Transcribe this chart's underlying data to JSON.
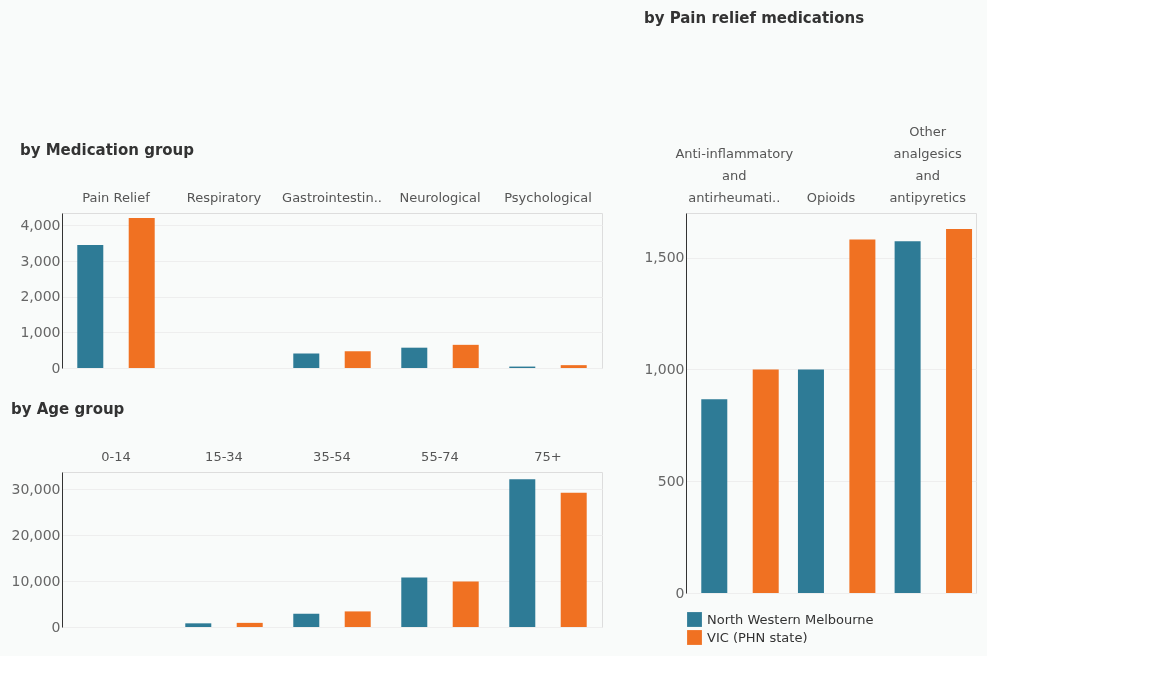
{
  "chart_data": [
    {
      "type": "bar",
      "title": "by Medication group",
      "categories": [
        "Pain Relief",
        "Respiratory",
        "Gastrointestin..",
        "Neurological",
        "Psychological"
      ],
      "series": [
        {
          "color": "#2e7b96",
          "values": [
            3450,
            null,
            410,
            570,
            40
          ]
        },
        {
          "color": "#f07122",
          "values": [
            4210,
            null,
            470,
            650,
            80
          ]
        }
      ],
      "ylim": [
        0,
        4350
      ],
      "yticks": [
        0,
        {
          "value": 1000,
          "label": "1,000"
        },
        {
          "value": 2000,
          "label": "2,000"
        },
        {
          "value": 3000,
          "label": "3,000"
        },
        {
          "value": 4000,
          "label": "4,000"
        }
      ],
      "grid": "y"
    },
    {
      "type": "bar",
      "title": "by Age group",
      "categories": [
        "0-14",
        "15-34",
        "35-54",
        "55-74",
        "75+"
      ],
      "series": [
        {
          "color": "#2e7b96",
          "values": [
            null,
            800,
            2900,
            10800,
            32200
          ]
        },
        {
          "color": "#f07122",
          "values": [
            null,
            900,
            3400,
            9900,
            29300
          ]
        }
      ],
      "ylim": [
        0,
        33800
      ],
      "yticks": [
        0,
        {
          "value": 10000,
          "label": "10,000"
        },
        {
          "value": 20000,
          "label": "20,000"
        },
        {
          "value": 30000,
          "label": "30,000"
        }
      ],
      "grid": "y"
    },
    {
      "type": "bar",
      "title": "by Pain relief medications",
      "categories": [
        "Anti-inflammatory and antirheumati..",
        "Opioids",
        "Other analgesics and antipyretics"
      ],
      "series": [
        {
          "name": "North Western Melbourne",
          "color": "#2e7b96",
          "values": [
            867,
            1000,
            1574
          ]
        },
        {
          "name": "VIC (PHN state)",
          "color": "#f07122",
          "values": [
            1000,
            1581,
            1628
          ]
        }
      ],
      "ylim": [
        0,
        1700
      ],
      "yticks": [
        0,
        500,
        {
          "value": 1000,
          "label": "1,000"
        },
        {
          "value": 1500,
          "label": "1,500"
        }
      ],
      "grid": "y",
      "legend": "bottom"
    }
  ]
}
